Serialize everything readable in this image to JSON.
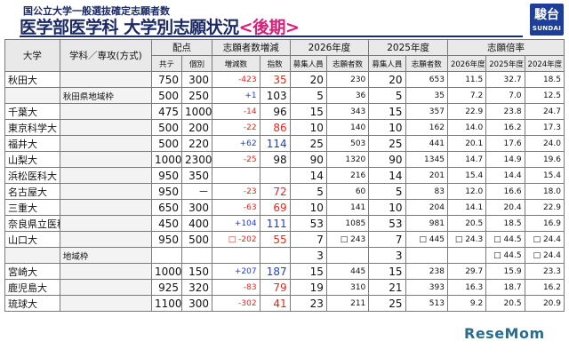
{
  "header": {
    "subtitle": "国公立大学一般選抜確定志願者数",
    "title_main": "医学部医学科 大学別志願状況",
    "title_accent": "<後期>"
  },
  "logo": {
    "line1": "駿台",
    "line2": "SUNDAI"
  },
  "columns": {
    "university": "大学",
    "department": "学科／専攻(方式)",
    "capacity": "配点",
    "capacity_a": "共テ",
    "capacity_b": "個別",
    "change": "志願者数増減",
    "change_a": "増減数",
    "change_b": "指数",
    "year2026": "2026年度",
    "year2025": "2025年度",
    "recruit": "募集人員",
    "applicants": "志願者数",
    "ratio": "志願倍率",
    "ratio2026": "2026年度",
    "ratio2025": "2025年度",
    "ratio2024": "2024年度"
  },
  "rows": [
    {
      "uni": "秋田大",
      "dept": "",
      "a": "750",
      "b": "300",
      "diff": "-423",
      "diffType": "neg",
      "idx": "35",
      "idxType": "neg",
      "r26": "20",
      "p26": "230",
      "r25": "20",
      "p25": "653",
      "x26": "11.5",
      "x25": "32.7",
      "x24": "18.5"
    },
    {
      "uni": "",
      "dept": "秋田県地域枠",
      "a": "500",
      "b": "250",
      "diff": "+1",
      "diffType": "pos",
      "idx": "103",
      "idxType": "",
      "r26": "5",
      "p26": "36",
      "r25": "5",
      "p25": "35",
      "x26": "7.2",
      "x25": "7.0",
      "x24": "12.5"
    },
    {
      "uni": "千葉大",
      "dept": "",
      "a": "475",
      "b": "1000",
      "diff": "-14",
      "diffType": "neg",
      "idx": "96",
      "idxType": "",
      "r26": "15",
      "p26": "343",
      "r25": "15",
      "p25": "357",
      "x26": "22.9",
      "x25": "23.8",
      "x24": "24.7"
    },
    {
      "uni": "東京科学大",
      "dept": "",
      "a": "500",
      "b": "200",
      "diff": "-22",
      "diffType": "neg",
      "idx": "86",
      "idxType": "neg",
      "r26": "10",
      "p26": "140",
      "r25": "10",
      "p25": "162",
      "x26": "14.0",
      "x25": "16.2",
      "x24": "17.3"
    },
    {
      "uni": "福井大",
      "dept": "",
      "a": "500",
      "b": "220",
      "diff": "+62",
      "diffType": "pos",
      "idx": "114",
      "idxType": "pos",
      "r26": "25",
      "p26": "503",
      "r25": "25",
      "p25": "441",
      "x26": "20.1",
      "x25": "17.6",
      "x24": "24.0"
    },
    {
      "uni": "山梨大",
      "dept": "",
      "a": "1000",
      "b": "2300",
      "diff": "-25",
      "diffType": "neg",
      "idx": "98",
      "idxType": "",
      "r26": "90",
      "p26": "1320",
      "r25": "90",
      "p25": "1345",
      "x26": "14.7",
      "x25": "14.9",
      "x24": "19.6"
    },
    {
      "uni": "浜松医科大",
      "dept": "",
      "a": "950",
      "b": "350",
      "diff": "",
      "diffType": "",
      "idx": "",
      "idxType": "",
      "r26": "14",
      "p26": "216",
      "r25": "14",
      "p25": "201",
      "x26": "15.4",
      "x25": "14.4",
      "x24": "15.4"
    },
    {
      "uni": "名古屋大",
      "dept": "",
      "a": "950",
      "b": "－",
      "diff": "-23",
      "diffType": "neg",
      "idx": "72",
      "idxType": "neg",
      "r26": "5",
      "p26": "60",
      "r25": "5",
      "p25": "83",
      "x26": "12.0",
      "x25": "16.6",
      "x24": "18.0"
    },
    {
      "uni": "三重大",
      "dept": "",
      "a": "650",
      "b": "300",
      "diff": "-63",
      "diffType": "neg",
      "idx": "69",
      "idxType": "neg",
      "r26": "10",
      "p26": "141",
      "r25": "10",
      "p25": "204",
      "x26": "14.1",
      "x25": "20.4",
      "x24": "22.9"
    },
    {
      "uni": "奈良県立医科大",
      "dept": "",
      "a": "450",
      "b": "400",
      "diff": "+104",
      "diffType": "pos",
      "idx": "111",
      "idxType": "pos",
      "r26": "53",
      "p26": "1085",
      "r25": "53",
      "p25": "981",
      "x26": "20.5",
      "x25": "18.5",
      "x24": "16.9"
    },
    {
      "uni": "山口大",
      "dept": "",
      "a": "950",
      "b": "500",
      "diff": "□ -202",
      "diffType": "neg",
      "idx": "55",
      "idxType": "neg",
      "r26": "7",
      "p26": "□ 243",
      "r25": "7",
      "p25": "□ 445",
      "x26": "□ 24.3",
      "x25": "□ 44.5",
      "x24": "□ 24.4"
    },
    {
      "uni": "",
      "dept": "地域枠",
      "a": "",
      "b": "",
      "diff": "",
      "diffType": "",
      "idx": "",
      "idxType": "",
      "r26": "3",
      "p26": "",
      "r25": "3",
      "p25": "",
      "x26": "",
      "x25": "□ 44.5",
      "x24": "□ 24.4"
    },
    {
      "uni": "宮崎大",
      "dept": "",
      "a": "1000",
      "b": "150",
      "diff": "+207",
      "diffType": "pos",
      "idx": "187",
      "idxType": "pos",
      "r26": "15",
      "p26": "445",
      "r25": "15",
      "p25": "238",
      "x26": "29.7",
      "x25": "15.9",
      "x24": "23.3"
    },
    {
      "uni": "鹿児島大",
      "dept": "",
      "a": "925",
      "b": "320",
      "diff": "-83",
      "diffType": "neg",
      "idx": "79",
      "idxType": "neg",
      "r26": "19",
      "p26": "310",
      "r25": "21",
      "p25": "393",
      "x26": "16.3",
      "x25": "18.7",
      "x24": "16.2"
    },
    {
      "uni": "琉球大",
      "dept": "",
      "a": "1100",
      "b": "300",
      "diff": "-302",
      "diffType": "neg",
      "idx": "41",
      "idxType": "neg",
      "r26": "23",
      "p26": "211",
      "r25": "25",
      "p25": "513",
      "x26": "9.2",
      "x25": "20.5",
      "x24": "20.9"
    }
  ],
  "watermark": "ReseMom"
}
